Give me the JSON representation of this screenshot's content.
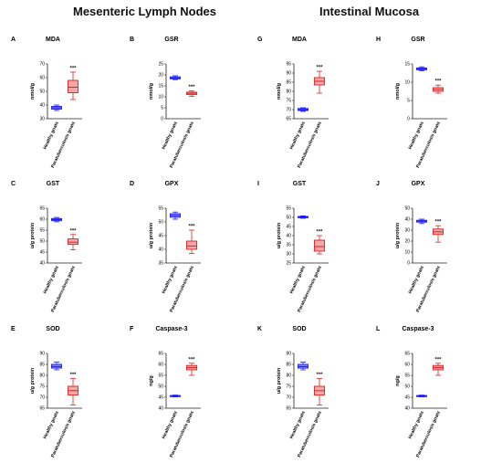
{
  "headers": {
    "left": "Mesenteric Lymph Nodes",
    "right": "Intestinal Mucosa"
  },
  "colors": {
    "healthy_stroke": "#1a1aff",
    "healthy_fill": "#8888ff",
    "para_stroke": "#e02020",
    "para_fill": "#f5a8a8"
  },
  "chart_data": [
    {
      "id": "A",
      "type": "box",
      "title": "MDA",
      "ylabel": "nmol/g",
      "ylim": [
        30,
        70
      ],
      "yticks": [
        30,
        40,
        50,
        60,
        70
      ],
      "categories": [
        "Healthy goats",
        "Paratuberculosis goats"
      ],
      "boxes": [
        {
          "min": 36,
          "q1": 37,
          "median": 38,
          "q3": 39,
          "max": 40
        },
        {
          "min": 44,
          "q1": 49,
          "median": 53,
          "q3": 58,
          "max": 64
        }
      ],
      "significance": "***"
    },
    {
      "id": "B",
      "type": "box",
      "title": "GSR",
      "ylabel": "nmol/g",
      "ylim": [
        0,
        25
      ],
      "yticks": [
        0,
        5,
        10,
        15,
        20,
        25
      ],
      "categories": [
        "Healthy goats",
        "Paratuberculosis goats"
      ],
      "boxes": [
        {
          "min": 17.8,
          "q1": 18.2,
          "median": 18.6,
          "q3": 19.1,
          "max": 19.6
        },
        {
          "min": 10.2,
          "q1": 11,
          "median": 11.6,
          "q3": 12.1,
          "max": 12.7
        }
      ],
      "significance": "***"
    },
    {
      "id": "G",
      "type": "box",
      "title": "MDA",
      "ylabel": "nmol/g",
      "ylim": [
        65,
        95
      ],
      "yticks": [
        65,
        70,
        75,
        80,
        85,
        90,
        95
      ],
      "categories": [
        "Healthy goats",
        "Paratuberculosis goats"
      ],
      "boxes": [
        {
          "min": 69,
          "q1": 69.5,
          "median": 70,
          "q3": 70.6,
          "max": 71
        },
        {
          "min": 79,
          "q1": 83.5,
          "median": 85.5,
          "q3": 87.5,
          "max": 91
        }
      ],
      "significance": "***"
    },
    {
      "id": "H",
      "type": "box",
      "title": "GSR",
      "ylabel": "nmol/g",
      "ylim": [
        0,
        15
      ],
      "yticks": [
        0,
        5,
        10,
        15
      ],
      "categories": [
        "Healthy goats",
        "Paratuberculosis goats"
      ],
      "boxes": [
        {
          "min": 13.1,
          "q1": 13.4,
          "median": 13.6,
          "q3": 13.9,
          "max": 14.2
        },
        {
          "min": 7,
          "q1": 7.5,
          "median": 8,
          "q3": 8.5,
          "max": 9.2
        }
      ],
      "significance": "***"
    },
    {
      "id": "C",
      "type": "box",
      "title": "GST",
      "ylabel": "u/g protein",
      "ylim": [
        40,
        65
      ],
      "yticks": [
        40,
        45,
        50,
        55,
        60,
        65
      ],
      "categories": [
        "Healthy goats",
        "Paratuberculosis goats"
      ],
      "boxes": [
        {
          "min": 58.8,
          "q1": 59.3,
          "median": 59.8,
          "q3": 60.3,
          "max": 60.8
        },
        {
          "min": 46,
          "q1": 48.5,
          "median": 49.5,
          "q3": 51,
          "max": 53
        }
      ],
      "significance": "***"
    },
    {
      "id": "D",
      "type": "box",
      "title": "GPX",
      "ylabel": "u/g protein",
      "ylim": [
        35,
        55
      ],
      "yticks": [
        35,
        40,
        45,
        50,
        55
      ],
      "categories": [
        "Healthy goats",
        "Paratuberculosis goats"
      ],
      "boxes": [
        {
          "min": 51,
          "q1": 51.7,
          "median": 52.3,
          "q3": 53,
          "max": 53.6
        },
        {
          "min": 38.5,
          "q1": 40,
          "median": 41.2,
          "q3": 43,
          "max": 47
        }
      ],
      "significance": "***"
    },
    {
      "id": "I",
      "type": "box",
      "title": "GST",
      "ylabel": "u/g protein",
      "ylim": [
        25,
        55
      ],
      "yticks": [
        25,
        30,
        35,
        40,
        45,
        50,
        55
      ],
      "categories": [
        "Healthy goats",
        "Paratuberculosis goats"
      ],
      "boxes": [
        {
          "min": 49.5,
          "q1": 49.8,
          "median": 50.2,
          "q3": 50.5,
          "max": 50.8
        },
        {
          "min": 30,
          "q1": 31.5,
          "median": 34,
          "q3": 37.5,
          "max": 40
        }
      ],
      "significance": "***"
    },
    {
      "id": "J",
      "type": "box",
      "title": "GPX",
      "ylabel": "u/g protein",
      "ylim": [
        0,
        50
      ],
      "yticks": [
        0,
        10,
        20,
        30,
        40,
        50
      ],
      "categories": [
        "Healthy goats",
        "Paratuberculosis goats"
      ],
      "boxes": [
        {
          "min": 36,
          "q1": 37.3,
          "median": 38.2,
          "q3": 39,
          "max": 40
        },
        {
          "min": 19,
          "q1": 26,
          "median": 28.5,
          "q3": 31,
          "max": 34
        }
      ],
      "significance": "***"
    },
    {
      "id": "E",
      "type": "box",
      "title": "SOD",
      "ylabel": "u/g protein",
      "ylim": [
        65,
        90
      ],
      "yticks": [
        65,
        70,
        75,
        80,
        85,
        90
      ],
      "categories": [
        "Healthy goats",
        "Paratuberculosis goats"
      ],
      "boxes": [
        {
          "min": 82.5,
          "q1": 83.3,
          "median": 84,
          "q3": 85,
          "max": 86
        },
        {
          "min": 66.5,
          "q1": 71,
          "median": 73,
          "q3": 75,
          "max": 78.5
        }
      ],
      "significance": "***"
    },
    {
      "id": "F",
      "type": "box",
      "title": "Caspase-3",
      "ylabel": "ng/g",
      "ylim": [
        40,
        65
      ],
      "yticks": [
        40,
        45,
        50,
        55,
        60,
        65
      ],
      "categories": [
        "Healthy goats",
        "Paratuberculosis goats"
      ],
      "boxes": [
        {
          "min": 45.2,
          "q1": 45.4,
          "median": 45.6,
          "q3": 45.8,
          "max": 46
        },
        {
          "min": 55,
          "q1": 57.5,
          "median": 58.5,
          "q3": 59.5,
          "max": 60.5
        }
      ],
      "significance": "***"
    },
    {
      "id": "K",
      "type": "box",
      "title": "SOD",
      "ylabel": "u/g protein",
      "ylim": [
        65,
        90
      ],
      "yticks": [
        65,
        70,
        75,
        80,
        85,
        90
      ],
      "categories": [
        "Healthy goats",
        "Paratuberculosis goats"
      ],
      "boxes": [
        {
          "min": 82.5,
          "q1": 83.3,
          "median": 84,
          "q3": 85,
          "max": 86
        },
        {
          "min": 66.5,
          "q1": 71,
          "median": 73,
          "q3": 75,
          "max": 78.5
        }
      ],
      "significance": "***"
    },
    {
      "id": "L",
      "type": "box",
      "title": "Caspase-3",
      "ylabel": "ng/g",
      "ylim": [
        40,
        65
      ],
      "yticks": [
        40,
        45,
        50,
        55,
        60,
        65
      ],
      "categories": [
        "Healthy goats",
        "Paratuberculosis goats"
      ],
      "boxes": [
        {
          "min": 45.2,
          "q1": 45.4,
          "median": 45.6,
          "q3": 45.8,
          "max": 46
        },
        {
          "min": 55,
          "q1": 57.5,
          "median": 58.5,
          "q3": 59.5,
          "max": 60.5
        }
      ],
      "significance": "***"
    }
  ]
}
